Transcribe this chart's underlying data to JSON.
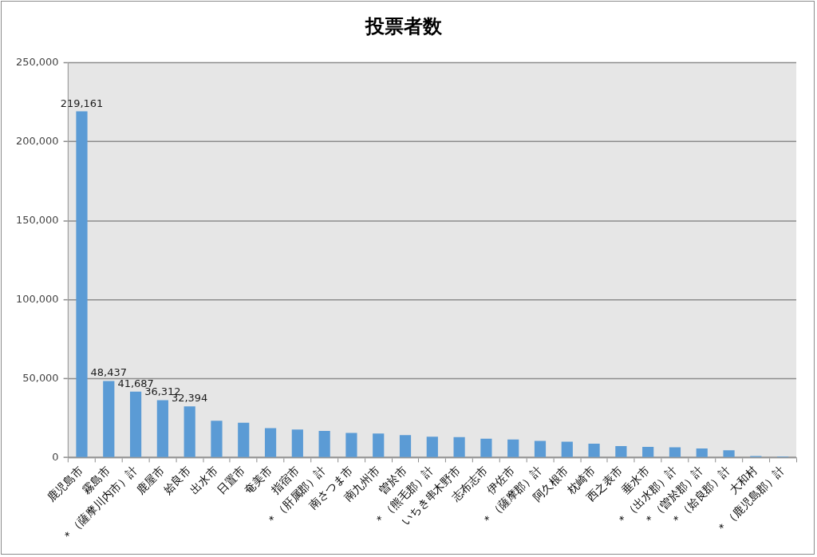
{
  "chart_data": {
    "type": "bar",
    "title": "投票者数",
    "categories": [
      "鹿児島市",
      "霧島市",
      "＊（薩摩川内市）計",
      "鹿屋市",
      "姶良市",
      "出水市",
      "日置市",
      "奄美市",
      "指宿市",
      "＊（肝属郡）計",
      "南さつま市",
      "南九州市",
      "曽於市",
      "＊（熊毛郡）計",
      "いちき串木野市",
      "志布志市",
      "伊佐市",
      "＊（薩摩郡）計",
      "阿久根市",
      "枕崎市",
      "西之表市",
      "垂水市",
      "＊（出水郡）計",
      "＊（曽於郡）計",
      "＊（姶良郡）計",
      "大和村",
      "＊（鹿児島郡）計"
    ],
    "values": [
      219161,
      48437,
      41687,
      36312,
      32394,
      23300,
      22000,
      18600,
      17800,
      16900,
      15600,
      15200,
      14200,
      13200,
      12900,
      11900,
      11400,
      10500,
      10000,
      8800,
      7200,
      6800,
      6500,
      5800,
      4600,
      1000,
      700
    ],
    "value_labels": [
      "219,161",
      "48,437",
      "41,687",
      "36,312",
      "32,394",
      null,
      null,
      null,
      null,
      null,
      null,
      null,
      null,
      null,
      null,
      null,
      null,
      null,
      null,
      null,
      null,
      null,
      null,
      null,
      null,
      null,
      null
    ],
    "color": "#5b9bd5",
    "ylim": [
      0,
      250000
    ],
    "yticks": [
      0,
      {
        "value": 50000,
        "label": "50,000"
      },
      {
        "value": 100000,
        "label": "100,000"
      },
      {
        "value": 150000,
        "label": "150,000"
      },
      {
        "value": 200000,
        "label": "200,000"
      },
      {
        "value": 250000,
        "label": "250,000"
      }
    ],
    "grid": "y"
  }
}
